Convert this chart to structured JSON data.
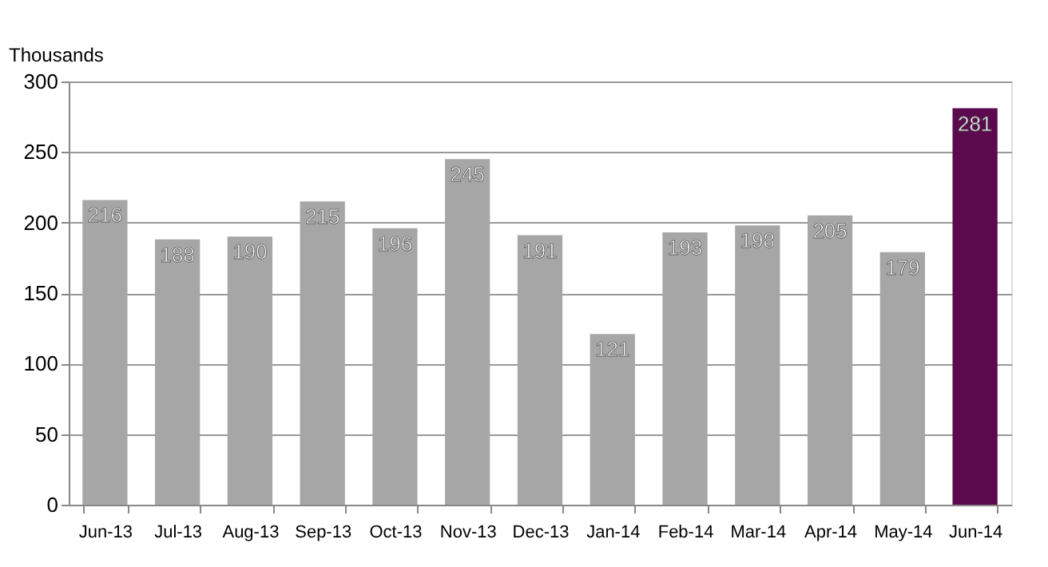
{
  "chart_data": {
    "type": "bar",
    "ylabel": "Thousands",
    "categories": [
      "Jun-13",
      "Jul-13",
      "Aug-13",
      "Sep-13",
      "Oct-13",
      "Nov-13",
      "Dec-13",
      "Jan-14",
      "Feb-14",
      "Mar-14",
      "Apr-14",
      "May-14",
      "Jun-14"
    ],
    "values": [
      216,
      188,
      190,
      215,
      196,
      245,
      191,
      121,
      193,
      198,
      205,
      179,
      281
    ],
    "colors": [
      "#a6a6a6",
      "#a6a6a6",
      "#a6a6a6",
      "#a6a6a6",
      "#a6a6a6",
      "#a6a6a6",
      "#a6a6a6",
      "#a6a6a6",
      "#a6a6a6",
      "#a6a6a6",
      "#a6a6a6",
      "#a6a6a6",
      "#5c0a4e"
    ],
    "ylim": [
      0,
      300
    ],
    "yticks": [
      0,
      50,
      100,
      150,
      200,
      250,
      300
    ],
    "grid": "y",
    "data_labels": true
  }
}
